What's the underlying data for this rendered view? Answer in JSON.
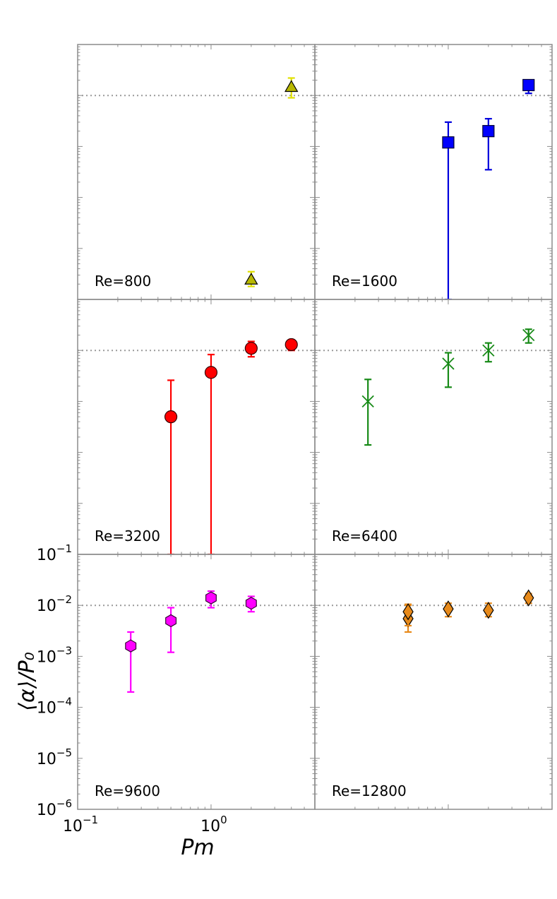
{
  "chart_data": {
    "type": "scatter",
    "layout": "3x2 grid of panels sharing axes",
    "xlabel": "Pm",
    "ylabel": "⟨α⟩/P₀",
    "x_scale": "log",
    "y_scale": "log",
    "xlim": [
      0.1,
      6.0
    ],
    "ylim": [
      1e-06,
      0.1
    ],
    "x_tick_labels": [
      {
        "value": 0.1,
        "base": "10",
        "exp": "−1"
      },
      {
        "value": 1,
        "base": "10",
        "exp": "0"
      }
    ],
    "y_tick_labels": [
      {
        "value": 0.1,
        "base": "10",
        "exp": "−1"
      },
      {
        "value": 0.01,
        "base": "10",
        "exp": "−2"
      },
      {
        "value": 0.001,
        "base": "10",
        "exp": "−3"
      },
      {
        "value": 0.0001,
        "base": "10",
        "exp": "−4"
      },
      {
        "value": 1e-05,
        "base": "10",
        "exp": "−5"
      },
      {
        "value": 1e-06,
        "base": "10",
        "exp": "−6"
      }
    ],
    "reference_line": {
      "y": 0.01,
      "style": "dotted"
    },
    "panels": [
      {
        "label": "Re=800",
        "marker": "triangle",
        "color": "#b8b800",
        "edge": "#000000",
        "err_color": "#e0e000",
        "points": [
          {
            "x": 2.0,
            "y": 2.5e-06,
            "lo": 1.8e-06,
            "hi": 3.5e-06
          },
          {
            "x": 4.0,
            "y": 0.015,
            "lo": 0.009,
            "hi": 0.022
          }
        ]
      },
      {
        "label": "Re=1600",
        "marker": "square",
        "color": "#0000ff",
        "edge": "#000033",
        "err_color": "#0000dd",
        "points": [
          {
            "x": 1.0,
            "y": 0.0012,
            "lo": 1e-06,
            "hi": 0.003
          },
          {
            "x": 2.0,
            "y": 0.002,
            "lo": 0.00035,
            "hi": 0.0035
          },
          {
            "x": 4.0,
            "y": 0.016,
            "lo": 0.011,
            "hi": 0.02
          }
        ]
      },
      {
        "label": "Re=3200",
        "marker": "circle",
        "color": "#ff0000",
        "edge": "#330000",
        "err_color": "#ff0000",
        "points": [
          {
            "x": 0.5,
            "y": 0.0005,
            "lo": 1e-06,
            "hi": 0.0026
          },
          {
            "x": 1.0,
            "y": 0.0037,
            "lo": 1e-06,
            "hi": 0.0083
          },
          {
            "x": 2.0,
            "y": 0.011,
            "lo": 0.0075,
            "hi": 0.015
          },
          {
            "x": 4.0,
            "y": 0.013,
            "lo": 0.01,
            "hi": 0.016
          }
        ]
      },
      {
        "label": "Re=6400",
        "marker": "x",
        "color": "#178a17",
        "edge": "#178a17",
        "err_color": "#178a17",
        "points": [
          {
            "x": 0.25,
            "y": 0.001,
            "lo": 0.00014,
            "hi": 0.0027
          },
          {
            "x": 1.0,
            "y": 0.0055,
            "lo": 0.0019,
            "hi": 0.009
          },
          {
            "x": 2.0,
            "y": 0.01,
            "lo": 0.006,
            "hi": 0.014
          },
          {
            "x": 4.0,
            "y": 0.02,
            "lo": 0.014,
            "hi": 0.026
          }
        ]
      },
      {
        "label": "Re=9600",
        "marker": "hexagon",
        "color": "#ff00ff",
        "edge": "#330033",
        "err_color": "#ff00ff",
        "points": [
          {
            "x": 0.25,
            "y": 0.0016,
            "lo": 0.0002,
            "hi": 0.003
          },
          {
            "x": 0.5,
            "y": 0.005,
            "lo": 0.0012,
            "hi": 0.009
          },
          {
            "x": 1.0,
            "y": 0.014,
            "lo": 0.009,
            "hi": 0.019
          },
          {
            "x": 2.0,
            "y": 0.011,
            "lo": 0.0075,
            "hi": 0.015
          }
        ]
      },
      {
        "label": "Re=12800",
        "marker": "diamond",
        "color": "#e88a1a",
        "edge": "#000000",
        "err_color": "#e88a1a",
        "points": [
          {
            "x": 0.5,
            "y": 0.0055,
            "lo": 0.003,
            "hi": 0.0105
          },
          {
            "x": 0.5,
            "y": 0.0075,
            "lo": 0.004,
            "hi": 0.01
          },
          {
            "x": 1.0,
            "y": 0.0085,
            "lo": 0.006,
            "hi": 0.011
          },
          {
            "x": 2.0,
            "y": 0.008,
            "lo": 0.006,
            "hi": 0.011
          },
          {
            "x": 4.0,
            "y": 0.014,
            "lo": 0.011,
            "hi": 0.017
          }
        ]
      }
    ]
  }
}
